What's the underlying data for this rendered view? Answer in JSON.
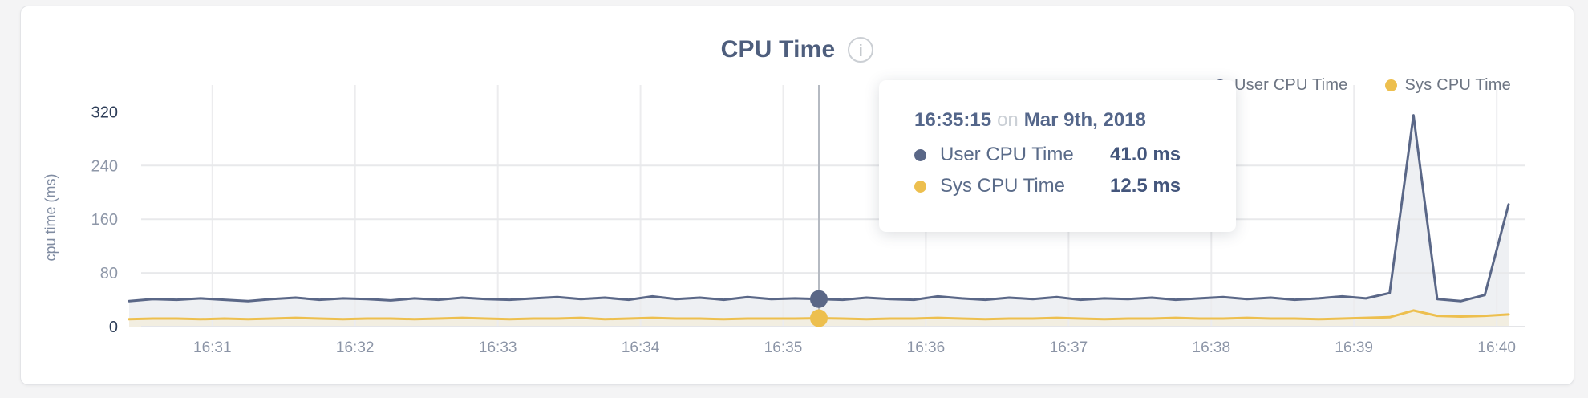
{
  "page": {
    "background": "#f4f4f5"
  },
  "header": {
    "title": "CPU Time",
    "info_icon": "i"
  },
  "legend": {
    "items": [
      {
        "label": "User CPU Time",
        "color": "#5a6787"
      },
      {
        "label": "Sys CPU Time",
        "color": "#edbf4e"
      }
    ]
  },
  "tooltip": {
    "time": "16:35:15",
    "preposition": "on",
    "date": "Mar 9th, 2018",
    "rows": [
      {
        "label": "User CPU Time",
        "value": "41.0 ms",
        "color": "#5a6787"
      },
      {
        "label": "Sys CPU Time",
        "value": "12.5 ms",
        "color": "#edbf4e"
      }
    ]
  },
  "chart_data": {
    "type": "area",
    "title": "CPU Time",
    "xlabel": "",
    "ylabel": "cpu time (ms)",
    "ylim": [
      0,
      360
    ],
    "yticks": [
      0,
      80,
      160,
      240,
      320
    ],
    "xticks": [
      "16:31",
      "16:32",
      "16:33",
      "16:34",
      "16:35",
      "16:36",
      "16:37",
      "16:38",
      "16:39",
      "16:40"
    ],
    "grid": true,
    "legend_position": "top-right",
    "x": [
      "16:30:25",
      "16:30:35",
      "16:30:45",
      "16:30:55",
      "16:31:05",
      "16:31:15",
      "16:31:25",
      "16:31:35",
      "16:31:45",
      "16:31:55",
      "16:32:05",
      "16:32:15",
      "16:32:25",
      "16:32:35",
      "16:32:45",
      "16:32:55",
      "16:33:05",
      "16:33:15",
      "16:33:25",
      "16:33:35",
      "16:33:45",
      "16:33:55",
      "16:34:05",
      "16:34:15",
      "16:34:25",
      "16:34:35",
      "16:34:45",
      "16:34:55",
      "16:35:05",
      "16:35:15",
      "16:35:25",
      "16:35:35",
      "16:35:45",
      "16:35:55",
      "16:36:05",
      "16:36:15",
      "16:36:25",
      "16:36:35",
      "16:36:45",
      "16:36:55",
      "16:37:05",
      "16:37:15",
      "16:37:25",
      "16:37:35",
      "16:37:45",
      "16:37:55",
      "16:38:05",
      "16:38:15",
      "16:38:25",
      "16:38:35",
      "16:38:45",
      "16:38:55",
      "16:39:05",
      "16:39:15",
      "16:39:25",
      "16:39:35",
      "16:39:45",
      "16:39:55",
      "16:40:05"
    ],
    "series": [
      {
        "name": "User CPU Time",
        "color": "#5a6787",
        "fill": "#eef0f3",
        "values": [
          38,
          41,
          40,
          42,
          40,
          38,
          41,
          43,
          40,
          42,
          41,
          39,
          42,
          40,
          43,
          41,
          40,
          42,
          44,
          41,
          43,
          40,
          45,
          41,
          43,
          40,
          44,
          41,
          42,
          41,
          40,
          43,
          41,
          40,
          45,
          42,
          40,
          43,
          41,
          44,
          40,
          42,
          41,
          43,
          40,
          42,
          44,
          41,
          43,
          40,
          42,
          45,
          42,
          50,
          315,
          41,
          38,
          47,
          182
        ]
      },
      {
        "name": "Sys CPU Time",
        "color": "#edbf4e",
        "fill": "#f2eee1",
        "values": [
          11,
          12,
          12,
          11,
          12,
          11,
          12,
          13,
          12,
          11,
          12,
          12,
          11,
          12,
          13,
          12,
          11,
          12,
          12,
          13,
          11,
          12,
          13,
          12,
          12,
          11,
          12,
          12,
          12,
          12.5,
          12,
          11,
          12,
          12,
          13,
          12,
          11,
          12,
          12,
          13,
          12,
          11,
          12,
          12,
          13,
          12,
          12,
          13,
          12,
          12,
          11,
          12,
          13,
          14,
          24,
          16,
          15,
          16,
          18
        ]
      }
    ],
    "hover": {
      "index": 29,
      "time": "16:35:15",
      "values": [
        41.0,
        12.5
      ]
    }
  }
}
